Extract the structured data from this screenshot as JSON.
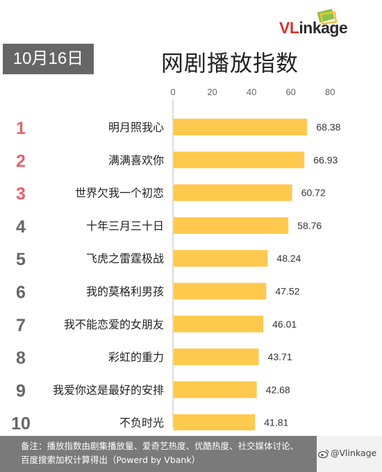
{
  "brand": {
    "logo_text_red": "VL",
    "logo_text_dark": "inkage"
  },
  "header": {
    "date": "10月16日",
    "title": "网剧播放指数"
  },
  "chart_data": {
    "type": "bar",
    "orientation": "horizontal",
    "title": "网剧播放指数",
    "xlim": [
      0,
      80
    ],
    "xticks": [
      0,
      20,
      40,
      60,
      80
    ],
    "grid": false,
    "bar_color": "#FFC94D",
    "rank_color_top3": "#E8606A",
    "rank_color_rest": "#666666",
    "ranks": [
      "1",
      "2",
      "3",
      "4",
      "5",
      "6",
      "7",
      "8",
      "9",
      "10"
    ],
    "categories": [
      "明月照我心",
      "满满喜欢你",
      "世界欠我一个初恋",
      "十年三月三十日",
      "飞虎之雷霆极战",
      "我的莫格利男孩",
      "我不能恋爱的女朋友",
      "彩虹的重力",
      "我爱你这是最好的安排",
      "不负时光"
    ],
    "values": [
      68.38,
      66.93,
      60.72,
      58.76,
      48.24,
      47.52,
      46.01,
      43.71,
      42.68,
      41.81
    ],
    "value_labels": [
      "68.38",
      "66.93",
      "60.72",
      "58.76",
      "48.24",
      "47.52",
      "46.01",
      "43.71",
      "42.68",
      "41.81"
    ]
  },
  "footer": {
    "note_line1": "备注：播放指数由剧集播放量、爱奇艺热度、优酷热度、社交媒体讨论、",
    "note_line2": "百度搜索加权计算得出（Powerd by Vbank）",
    "weibo_handle": "@Vlinkage"
  }
}
